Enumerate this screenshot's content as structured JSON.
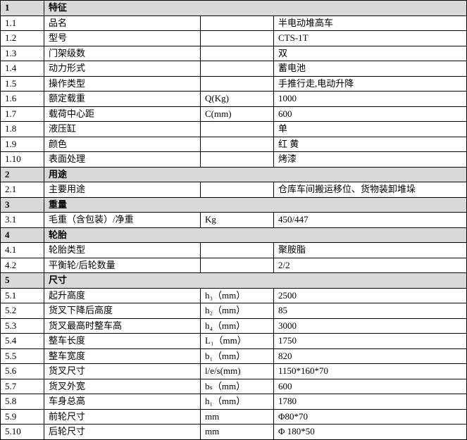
{
  "sections": [
    {
      "number": "1",
      "title": "特征",
      "rows": [
        {
          "no": "1.1",
          "item": "品名",
          "value": "半电动堆高车"
        },
        {
          "no": "1.2",
          "item": "型号",
          "value": "CTS-1T"
        },
        {
          "no": "1.3",
          "item": "门架级数",
          "value": "双"
        },
        {
          "no": "1.4",
          "item": "动力形式",
          "value": "蓄电池"
        },
        {
          "no": "1.5",
          "item": "操作类型",
          "value": "手推行走,电动升降"
        },
        {
          "no": "1.6",
          "item": "额定载重",
          "unit": "Q(Kg)",
          "value": "1000"
        },
        {
          "no": "1.7",
          "item": "载荷中心距",
          "unit": "C(mm)",
          "value": "600"
        },
        {
          "no": "1.8",
          "item": "液压缸",
          "value": "单"
        },
        {
          "no": "1.9",
          "item": "颜色",
          "value": "红  黄"
        },
        {
          "no": "1.10",
          "item": "表面处理",
          "value": "烤漆"
        }
      ]
    },
    {
      "number": "2",
      "title": "用途",
      "rows": [
        {
          "no": "2.1",
          "item": "主要用途",
          "value": "仓库车间搬运移位、货物装卸堆垛"
        }
      ]
    },
    {
      "number": "3",
      "title": "重量",
      "rows": [
        {
          "no": "3.1",
          "item": "毛重（含包装）/净重",
          "unit": "Kg",
          "value": "450/447"
        }
      ]
    },
    {
      "number": "4",
      "title": "轮胎",
      "rows": [
        {
          "no": "4.1",
          "item": "轮胎类型",
          "value": "聚胺脂"
        },
        {
          "no": "4.2",
          "item": "平衡轮/后轮数量",
          "value": "2/2"
        }
      ]
    },
    {
      "number": "5",
      "title": "尺寸",
      "rows": [
        {
          "no": "5.1",
          "item": "起升高度",
          "unit": "h₃（mm）",
          "value": "2500"
        },
        {
          "no": "5.2",
          "item": "货叉下降后高度",
          "unit": "h₂（mm）",
          "value": "85"
        },
        {
          "no": "5.3",
          "item": "货叉最高时整车高",
          "unit": "h₄（mm）",
          "value": "3000"
        },
        {
          "no": "5.4",
          "item": "整车长度",
          "unit": "L₁（mm）",
          "value": "1750"
        },
        {
          "no": "5.5",
          "item": "整车宽度",
          "unit": "b₁（mm）",
          "value": "820"
        },
        {
          "no": "5.6",
          "item": "货叉尺寸",
          "unit": "l/e/s(mm)",
          "value": "1150*160*70"
        },
        {
          "no": "5.7",
          "item": "货叉外宽",
          "unit": "bₛ（mm）",
          "value": "600"
        },
        {
          "no": "5.8",
          "item": "车身总高",
          "unit": "h₁（mm）",
          "value": "1780"
        },
        {
          "no": "5.9",
          "item": "前轮尺寸",
          "unit": "mm",
          "value": "Φ80*70"
        },
        {
          "no": "5.10",
          "item": "后轮尺寸",
          "unit": "mm",
          "value": "Φ 180*50"
        }
      ]
    }
  ]
}
